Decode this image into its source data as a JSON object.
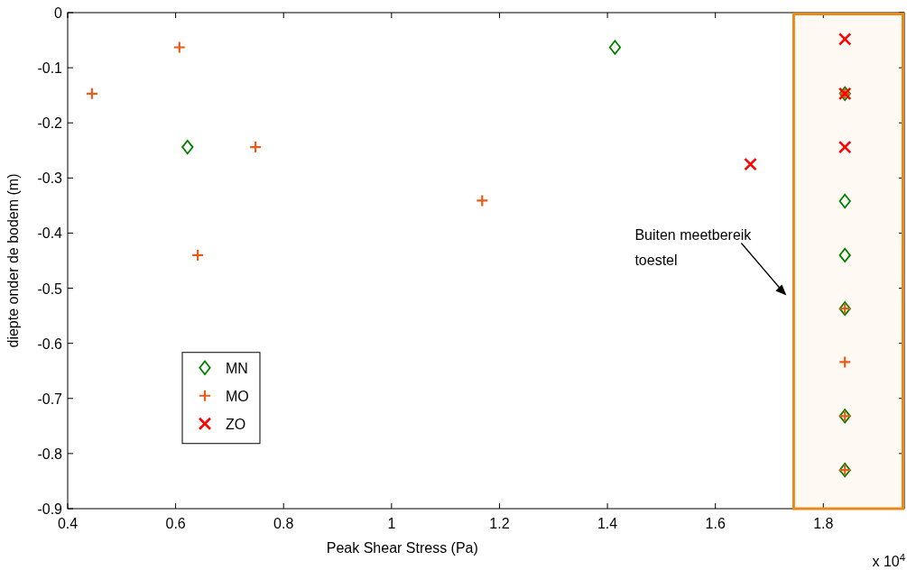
{
  "chart_data": {
    "type": "scatter",
    "xlabel": "Peak Shear Stress (Pa)",
    "ylabel": "diepte onder de bodem (m)",
    "xlim": [
      0.4,
      1.95
    ],
    "ylim": [
      -0.9,
      0
    ],
    "xticks": [
      0.4,
      0.6,
      0.8,
      1,
      1.2,
      1.4,
      1.6,
      1.8
    ],
    "yticks": [
      -0.9,
      -0.8,
      -0.7,
      -0.6,
      -0.5,
      -0.4,
      -0.3,
      -0.2,
      -0.1,
      0
    ],
    "legend": "bottom left",
    "grid": false,
    "series": [
      {
        "name": "MN",
        "color": "#008000",
        "marker": "diamond",
        "x": [
          0.622,
          1.414,
          1.84,
          1.84,
          1.84,
          1.84,
          1.84,
          1.84
        ],
        "values": [
          -0.244,
          -0.063,
          -0.147,
          -0.342,
          -0.44,
          -0.537,
          -0.732,
          -0.83
        ]
      },
      {
        "name": "MO",
        "color": "#e65c1a",
        "marker": "plus",
        "x": [
          0.445,
          0.607,
          0.748,
          0.641,
          1.168,
          1.84,
          1.84,
          1.84,
          1.84,
          1.84
        ],
        "values": [
          -0.147,
          -0.063,
          -0.244,
          -0.44,
          -0.341,
          -0.147,
          -0.537,
          -0.634,
          -0.732,
          -0.83
        ]
      },
      {
        "name": "ZO",
        "color": "#ff0000",
        "marker": "cross",
        "x": [
          1.665,
          1.84,
          1.84,
          1.84
        ],
        "values": [
          -0.275,
          -0.048,
          -0.147,
          -0.244
        ]
      }
    ],
    "bands": [
      {
        "axis": "x",
        "from": 1.745,
        "to": 1.95,
        "color": "#e88a1a"
      }
    ],
    "annotations": [
      "Buiten meetbereik\ntoestel",
      "x 10$^{4}$"
    ]
  }
}
